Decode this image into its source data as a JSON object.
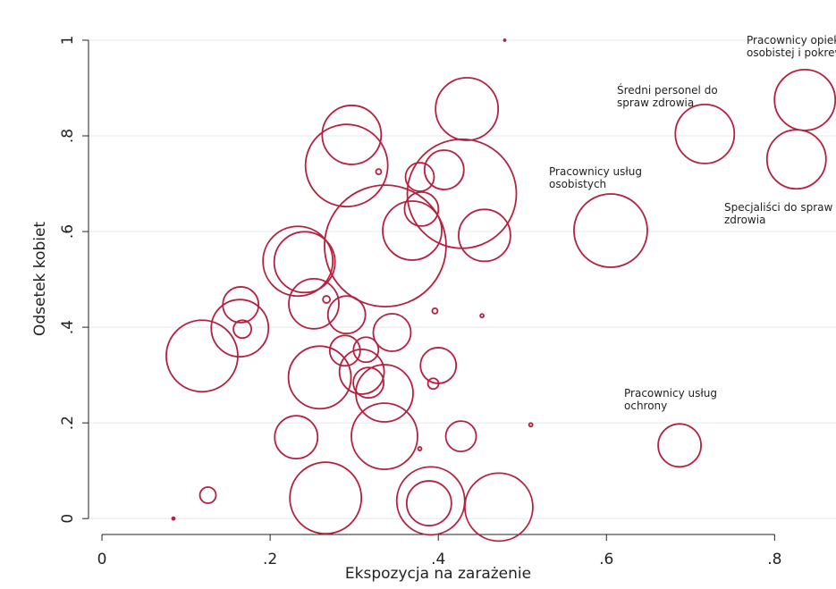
{
  "chart_data": {
    "type": "scatter",
    "x_label": "Ekspozycja na zarażenie",
    "y_label": "Odsetek kobiet",
    "color": "#b5213f",
    "grid": true,
    "xlim": [
      -0.016,
      0.873
    ],
    "ylim": [
      -0.037,
      1.084
    ],
    "xticks": [
      0,
      {
        "value": 0.2,
        "label": ".2"
      },
      {
        "value": 0.4,
        "label": ".4"
      },
      {
        "value": 0.6,
        "label": ".6"
      },
      {
        "value": 0.8,
        "label": ".8"
      }
    ],
    "yticks": [
      0,
      {
        "value": 0.2,
        "label": ".2"
      },
      {
        "value": 0.4,
        "label": ".4"
      },
      {
        "value": 0.6,
        "label": ".6"
      },
      {
        "value": 0.8,
        "label": ".8"
      },
      1
    ],
    "x": [
      0.479,
      0.434,
      0.297,
      0.717,
      0.836,
      0.826,
      0.329,
      0.291,
      0.378,
      0.407,
      0.428,
      0.605,
      0.455,
      0.38,
      0.369,
      0.337,
      0.233,
      0.241,
      0.252,
      0.267,
      0.165,
      0.164,
      0.167,
      0.291,
      0.396,
      0.452,
      0.345,
      0.119,
      0.289,
      0.314,
      0.259,
      0.309,
      0.4,
      0.317,
      0.336,
      0.394,
      0.51,
      0.231,
      0.336,
      0.427,
      0.378,
      0.687,
      0.126,
      0.266,
      0.391,
      0.389,
      0.472,
      0.085
    ],
    "y": [
      1.0,
      0.856,
      0.802,
      0.804,
      0.875,
      0.751,
      0.725,
      0.738,
      0.714,
      0.729,
      0.679,
      0.602,
      0.592,
      0.647,
      0.602,
      0.57,
      0.538,
      0.536,
      0.449,
      0.458,
      0.447,
      0.398,
      0.396,
      0.426,
      0.434,
      0.424,
      0.389,
      0.34,
      0.351,
      0.353,
      0.295,
      0.307,
      0.32,
      0.284,
      0.262,
      0.282,
      0.196,
      0.17,
      0.172,
      0.172,
      0.146,
      0.153,
      0.049,
      0.043,
      0.037,
      0.032,
      0.024,
      0.0
    ],
    "sizes": [
      1,
      35,
      33,
      33,
      34,
      33,
      3,
      46,
      16,
      22,
      61,
      41,
      29,
      19,
      33,
      68,
      39,
      34,
      28,
      4,
      20,
      32,
      10,
      21,
      3,
      2,
      21,
      40,
      17,
      14,
      35,
      25,
      20,
      17,
      32,
      6,
      2,
      24,
      37,
      17,
      2,
      24,
      9,
      40,
      38,
      25,
      38,
      1.5
    ],
    "annotations": [
      [
        "Pracownicy opieki",
        "osobistej i pokrewni"
      ],
      [
        "Średni personel do",
        "spraw zdrowia"
      ],
      [
        "Pracownicy usług",
        "osobistych"
      ],
      [
        "Specjaliści do spraw",
        "zdrowia"
      ],
      [
        "Pracownicy usług",
        "ochrony"
      ]
    ]
  }
}
